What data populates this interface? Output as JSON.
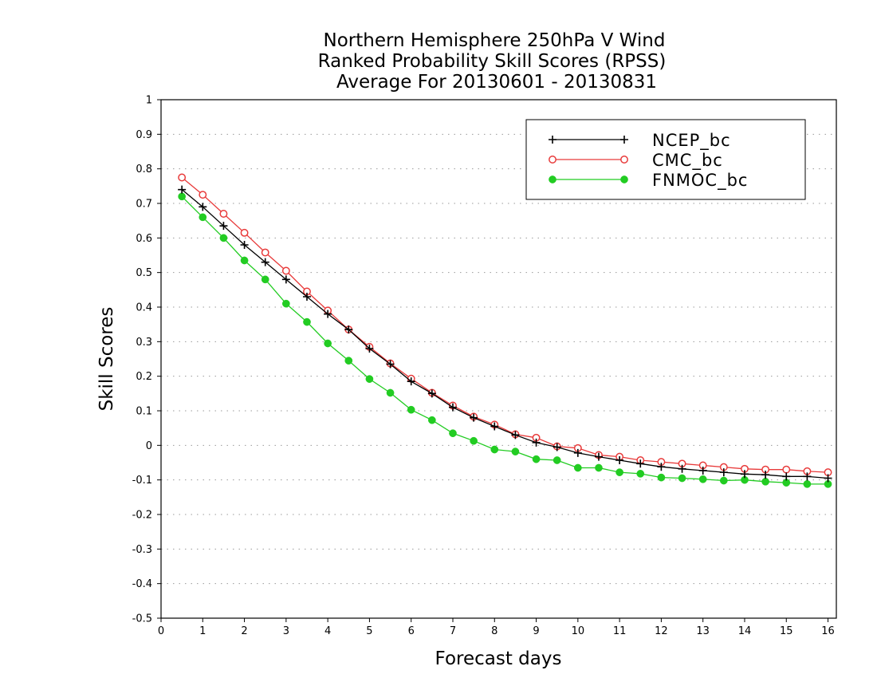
{
  "chart_data": {
    "type": "line",
    "title": [
      "Northern Hemisphere 250hPa V Wind",
      "Ranked Probability Skill Scores (RPSS)",
      "Average For 20130601 - 20130831"
    ],
    "xlabel": "Forecast days",
    "ylabel": "Skill Scores",
    "xlim": [
      0,
      16.2
    ],
    "ylim": [
      -0.5,
      1
    ],
    "x_ticks": [
      "0",
      "1",
      "2",
      "3",
      "4",
      "5",
      "6",
      "7",
      "8",
      "9",
      "10",
      "11",
      "12",
      "13",
      "14",
      "15",
      "16"
    ],
    "y_ticks": [
      "1",
      "0.9",
      "0.8",
      "0.7",
      "0.6",
      "0.5",
      "0.4",
      "0.3",
      "0.2",
      "0.1",
      "0",
      "-0.1",
      "-0.2",
      "-0.3",
      "-0.4",
      "-0.5"
    ],
    "grid": "horizontal dotted",
    "legend_position": "top-right",
    "x": [
      0.5,
      1,
      1.5,
      2,
      2.5,
      3,
      3.5,
      4,
      4.5,
      5,
      5.5,
      6,
      6.5,
      7,
      7.5,
      8,
      8.5,
      9,
      9.5,
      10,
      10.5,
      11,
      11.5,
      12,
      12.5,
      13,
      13.5,
      14,
      14.5,
      15,
      15.5,
      16
    ],
    "series": [
      {
        "name": "NCEP_bc",
        "color": "#000000",
        "marker": "plus",
        "values": [
          0.74,
          0.69,
          0.635,
          0.58,
          0.53,
          0.48,
          0.43,
          0.38,
          0.335,
          0.28,
          0.235,
          0.185,
          0.15,
          0.11,
          0.08,
          0.055,
          0.03,
          0.008,
          -0.005,
          -0.022,
          -0.033,
          -0.043,
          -0.053,
          -0.062,
          -0.068,
          -0.073,
          -0.078,
          -0.083,
          -0.085,
          -0.09,
          -0.09,
          -0.095
        ]
      },
      {
        "name": "CMC_bc",
        "color": "#e83a3a",
        "marker": "open-circle",
        "values": [
          0.775,
          0.725,
          0.67,
          0.615,
          0.558,
          0.505,
          0.445,
          0.39,
          0.335,
          0.285,
          0.237,
          0.193,
          0.152,
          0.115,
          0.083,
          0.06,
          0.032,
          0.022,
          -0.003,
          -0.008,
          -0.028,
          -0.033,
          -0.043,
          -0.048,
          -0.053,
          -0.058,
          -0.063,
          -0.068,
          -0.07,
          -0.07,
          -0.075,
          -0.078
        ]
      },
      {
        "name": "FNMOC_bc",
        "color": "#22cc22",
        "marker": "filled-circle",
        "values": [
          0.72,
          0.66,
          0.6,
          0.535,
          0.48,
          0.41,
          0.357,
          0.295,
          0.245,
          0.192,
          0.152,
          0.103,
          0.073,
          0.035,
          0.013,
          -0.012,
          -0.018,
          -0.04,
          -0.043,
          -0.065,
          -0.065,
          -0.078,
          -0.082,
          -0.093,
          -0.095,
          -0.098,
          -0.102,
          -0.1,
          -0.105,
          -0.108,
          -0.112,
          -0.112
        ]
      }
    ]
  }
}
